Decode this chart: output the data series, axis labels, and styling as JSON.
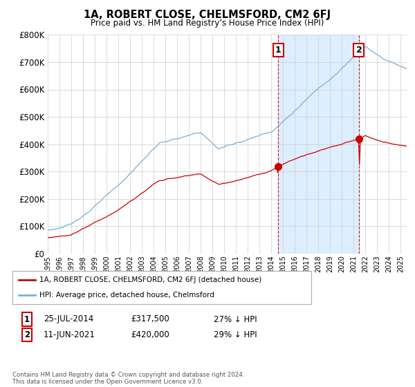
{
  "title": "1A, ROBERT CLOSE, CHELMSFORD, CM2 6FJ",
  "subtitle": "Price paid vs. HM Land Registry’s House Price Index (HPI)",
  "legend_label_red": "1A, ROBERT CLOSE, CHELMSFORD, CM2 6FJ (detached house)",
  "legend_label_blue": "HPI: Average price, detached house, Chelmsford",
  "annotation1_label": "1",
  "annotation1_date": "25-JUL-2014",
  "annotation1_price": "£317,500",
  "annotation1_hpi": "27% ↓ HPI",
  "annotation1_year": 2014.57,
  "annotation1_value": 317500,
  "annotation2_label": "2",
  "annotation2_date": "11-JUN-2021",
  "annotation2_price": "£420,000",
  "annotation2_hpi": "29% ↓ HPI",
  "annotation2_year": 2021.44,
  "annotation2_value": 420000,
  "footer": "Contains HM Land Registry data © Crown copyright and database right 2024.\nThis data is licensed under the Open Government Licence v3.0.",
  "red_color": "#cc0000",
  "blue_color": "#7aaed4",
  "shade_color": "#ddeeff",
  "background_color": "#ffffff",
  "grid_color": "#cccccc",
  "ylim": [
    0,
    800000
  ],
  "xlim_start": 1995.0,
  "xlim_end": 2025.5
}
